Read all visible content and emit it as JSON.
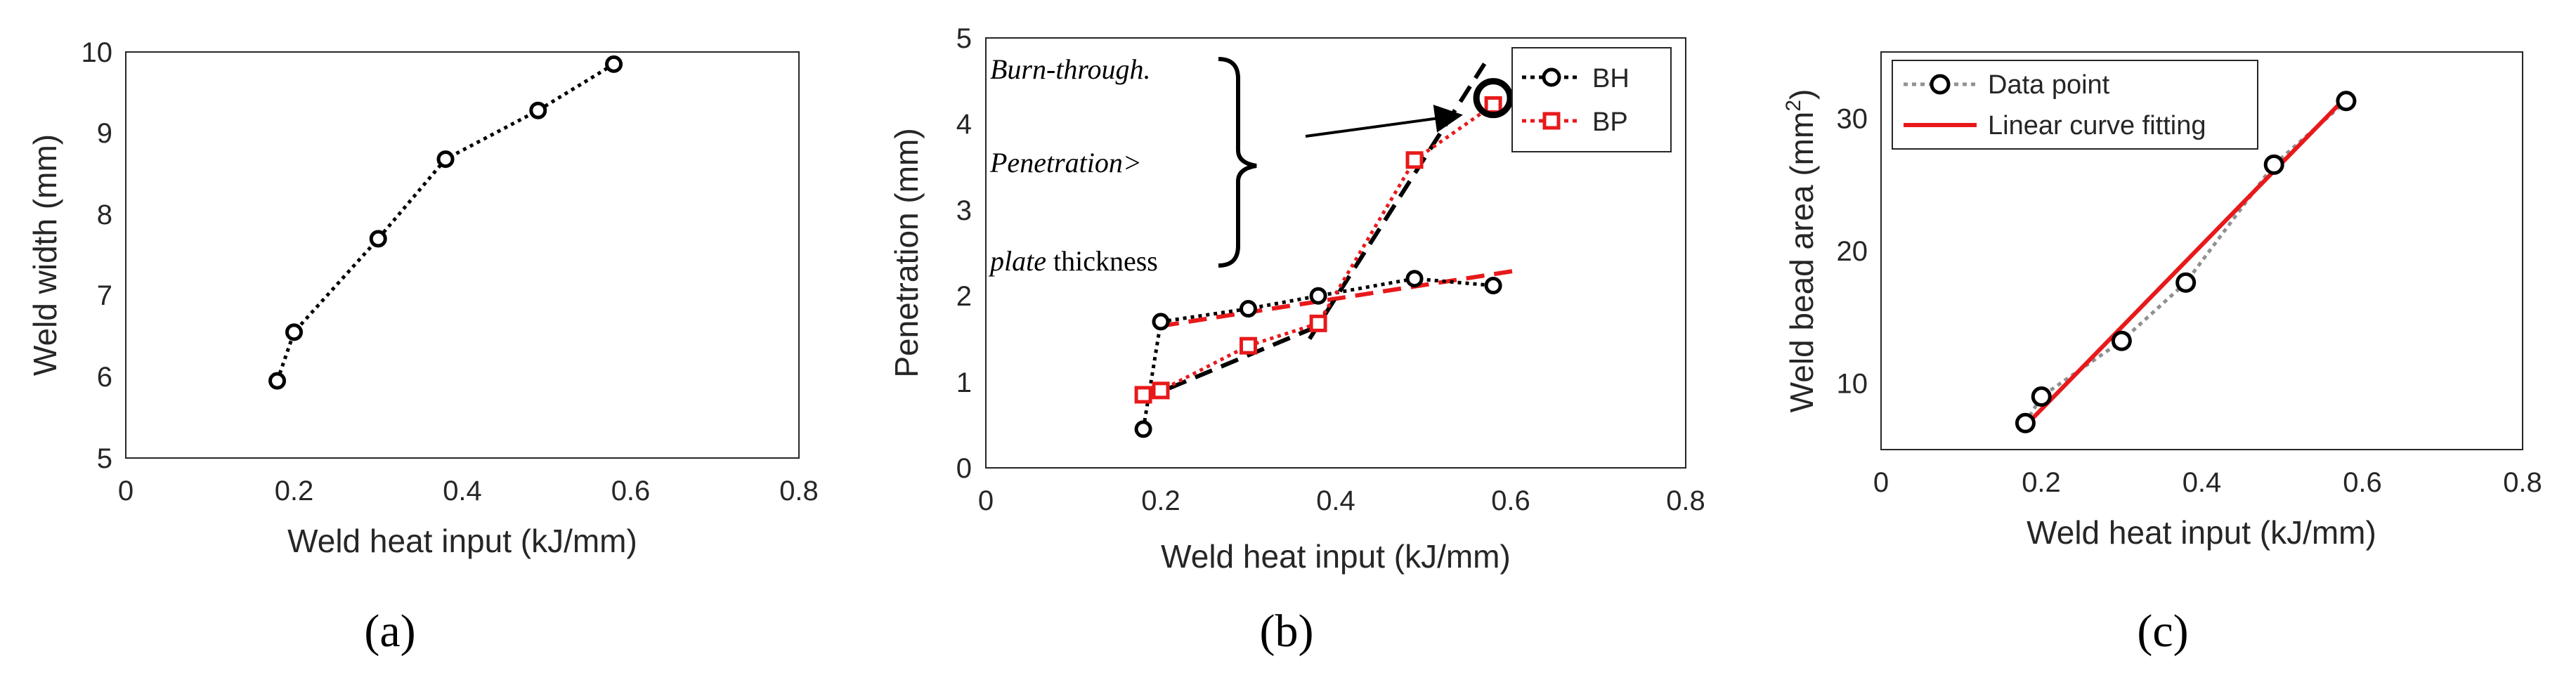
{
  "chart_data": [
    {
      "panel": "(a)",
      "type": "line",
      "xlabel": "Weld heat input (kJ/mm)",
      "ylabel": "Weld width (mm)",
      "xlim": [
        0,
        0.8
      ],
      "ylim": [
        5,
        10
      ],
      "xticks": [
        "0",
        "0.2",
        "0.4",
        "0.6",
        "0.8"
      ],
      "yticks": [
        "5",
        "6",
        "7",
        "8",
        "9",
        "10"
      ],
      "series": [
        {
          "name": "Weld width",
          "x": [
            0.18,
            0.2,
            0.3,
            0.38,
            0.49,
            0.58
          ],
          "y": [
            5.95,
            6.55,
            7.7,
            8.68,
            9.28,
            9.85
          ],
          "color": "#000000"
        }
      ]
    },
    {
      "panel": "(b)",
      "type": "line",
      "xlabel": "Weld heat input (kJ/mm)",
      "ylabel": "Penetration (mm)",
      "xlim": [
        0,
        0.8
      ],
      "ylim": [
        0,
        5
      ],
      "xticks": [
        "0",
        "0.2",
        "0.4",
        "0.6",
        "0.8"
      ],
      "yticks": [
        "0",
        "1",
        "2",
        "3",
        "4",
        "5"
      ],
      "legend_position": "top-right",
      "series": [
        {
          "name": "BH",
          "x": [
            0.18,
            0.2,
            0.3,
            0.38,
            0.49,
            0.58
          ],
          "y": [
            0.45,
            1.7,
            1.85,
            2.0,
            2.2,
            2.12
          ],
          "color": "#000000",
          "marker": "circle"
        },
        {
          "name": "BP",
          "x": [
            0.18,
            0.2,
            0.3,
            0.38,
            0.49,
            0.58
          ],
          "y": [
            0.85,
            0.9,
            1.42,
            1.68,
            3.58,
            4.22
          ],
          "color": "#e8191b",
          "marker": "square"
        }
      ],
      "trend_lines": [
        {
          "color": "#e8191b",
          "x": [
            0.2,
            0.61
          ],
          "y": [
            1.65,
            2.3
          ]
        },
        {
          "color": "#000000",
          "x": [
            0.18,
            0.38
          ],
          "y": [
            0.8,
            1.65
          ]
        },
        {
          "color": "#000000",
          "x": [
            0.37,
            0.57
          ],
          "y": [
            1.5,
            4.7
          ]
        }
      ],
      "highlight_point": {
        "x": 0.58,
        "y": 4.3
      },
      "annotation": {
        "line1": "Burn-through.",
        "line2": "Penetration>",
        "line3_italic": "plate",
        "line3_regular": " thickness"
      }
    },
    {
      "panel": "(c)",
      "type": "scatter",
      "xlabel": "Weld heat input (kJ/mm)",
      "ylabel_main": "Weld bead area (mm",
      "ylabel_sup": "2",
      "ylabel_close": ")",
      "xlim": [
        0,
        0.8
      ],
      "ylim": [
        5,
        35
      ],
      "xticks": [
        "0",
        "0.2",
        "0.4",
        "0.6",
        "0.8"
      ],
      "yticks": [
        "10",
        "20",
        "30"
      ],
      "ytick_values": [
        10,
        20,
        30
      ],
      "legend_position": "top-left",
      "series": [
        {
          "name": "Data point",
          "x": [
            0.18,
            0.2,
            0.3,
            0.38,
            0.49,
            0.58
          ],
          "y": [
            7.0,
            9.0,
            13.2,
            17.6,
            26.5,
            31.3
          ],
          "color": "#000000",
          "line_color": "#909090"
        },
        {
          "name": "Linear curve fitting",
          "x": [
            0.18,
            0.58
          ],
          "y": [
            6.8,
            31.6
          ],
          "color": "#e8191b"
        }
      ]
    }
  ]
}
